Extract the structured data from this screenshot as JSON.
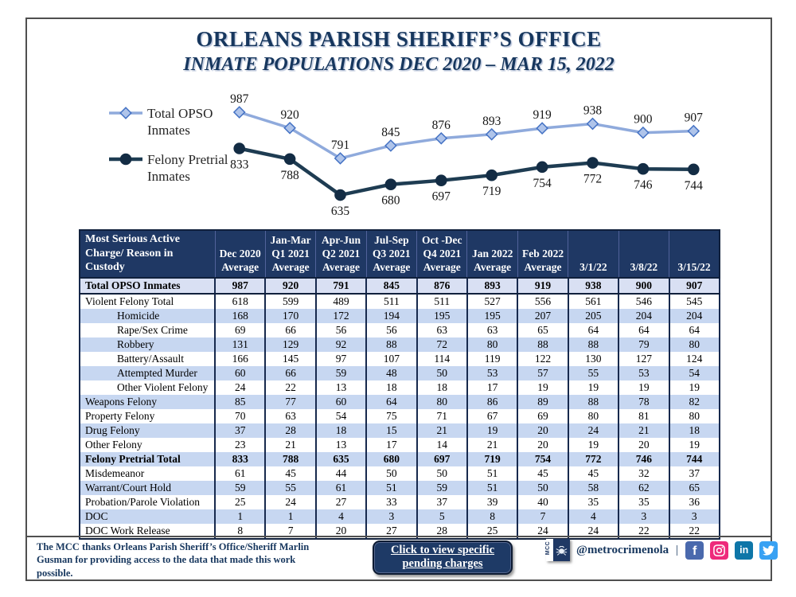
{
  "page": {
    "title": "ORLEANS PARISH SHERIFF’S OFFICE",
    "subtitle": "INMATE POPULATIONS DEC 2020 – MAR 15, 2022"
  },
  "chart_data": [
    {
      "type": "line",
      "title": "",
      "categories": [
        "Dec 2020 Average",
        "Jan-Mar Q1 2021 Average",
        "Apr-Jun Q2 2021 Average",
        "Jul-Sep Q3 2021 Average",
        "Oct -Dec Q4 2021 Average",
        "Jan 2022 Average",
        "Feb 2022 Average",
        "3/1/22",
        "3/8/22",
        "3/15/22"
      ],
      "series": [
        {
          "name": "Total OPSO Inmates",
          "label_lines": [
            "Total OPSO",
            "Inmates"
          ],
          "values": [
            987,
            920,
            791,
            845,
            876,
            893,
            919,
            938,
            900,
            907
          ],
          "color": "#8FAADC",
          "marker": "diamond",
          "marker_fill": "#AFC4EA",
          "marker_stroke": "#4472C4"
        },
        {
          "name": "Felony Pretrial Inmates",
          "label_lines": [
            "Felony Pretrial",
            "Inmates"
          ],
          "values": [
            833,
            788,
            635,
            680,
            697,
            719,
            754,
            772,
            746,
            744
          ],
          "color": "#1E3C52",
          "marker": "circle",
          "marker_fill": "#132C44",
          "marker_stroke": "#132C44"
        }
      ],
      "data_labels": true,
      "grid": false,
      "axes_hidden": true,
      "legend_position": "left",
      "ylim": [
        600,
        1020
      ]
    },
    {
      "type": "table",
      "header": [
        "Most Serious Active Charge/ Reason in Custody",
        "Dec 2020 Average",
        "Jan-Mar Q1 2021 Average",
        "Apr-Jun Q2 2021 Average",
        "Jul-Sep Q3 2021 Average",
        "Oct -Dec Q4 2021 Average",
        "Jan 2022 Average",
        "Feb 2022 Average",
        "3/1/22",
        "3/8/22",
        "3/15/22"
      ],
      "rows": [
        {
          "label": "Total OPSO Inmates",
          "bold": true,
          "indent": false,
          "values": [
            987,
            920,
            791,
            845,
            876,
            893,
            919,
            938,
            900,
            907
          ]
        },
        {
          "label": "Violent Felony Total",
          "bold": false,
          "indent": false,
          "values": [
            618,
            599,
            489,
            511,
            511,
            527,
            556,
            561,
            546,
            545
          ]
        },
        {
          "label": "Homicide",
          "bold": false,
          "indent": true,
          "values": [
            168,
            170,
            172,
            194,
            195,
            195,
            207,
            205,
            204,
            204
          ]
        },
        {
          "label": "Rape/Sex Crime",
          "bold": false,
          "indent": true,
          "values": [
            69,
            66,
            56,
            56,
            63,
            63,
            65,
            64,
            64,
            64
          ]
        },
        {
          "label": "Robbery",
          "bold": false,
          "indent": true,
          "values": [
            131,
            129,
            92,
            88,
            72,
            80,
            88,
            88,
            79,
            80
          ]
        },
        {
          "label": "Battery/Assault",
          "bold": false,
          "indent": true,
          "values": [
            166,
            145,
            97,
            107,
            114,
            119,
            122,
            130,
            127,
            124
          ]
        },
        {
          "label": "Attempted Murder",
          "bold": false,
          "indent": true,
          "values": [
            60,
            66,
            59,
            48,
            50,
            53,
            57,
            55,
            53,
            54
          ]
        },
        {
          "label": "Other Violent Felony",
          "bold": false,
          "indent": true,
          "values": [
            24,
            22,
            13,
            18,
            18,
            17,
            19,
            19,
            19,
            19
          ]
        },
        {
          "label": "Weapons Felony",
          "bold": false,
          "indent": false,
          "values": [
            85,
            77,
            60,
            64,
            80,
            86,
            89,
            88,
            78,
            82
          ]
        },
        {
          "label": "Property Felony",
          "bold": false,
          "indent": false,
          "values": [
            70,
            63,
            54,
            75,
            71,
            67,
            69,
            80,
            81,
            80
          ]
        },
        {
          "label": "Drug Felony",
          "bold": false,
          "indent": false,
          "values": [
            37,
            28,
            18,
            15,
            21,
            19,
            20,
            24,
            21,
            18
          ]
        },
        {
          "label": "Other Felony",
          "bold": false,
          "indent": false,
          "values": [
            23,
            21,
            13,
            17,
            14,
            21,
            20,
            19,
            20,
            19
          ]
        },
        {
          "label": "Felony Pretrial Total",
          "bold": true,
          "indent": false,
          "values": [
            833,
            788,
            635,
            680,
            697,
            719,
            754,
            772,
            746,
            744
          ]
        },
        {
          "label": "Misdemeanor",
          "bold": false,
          "indent": false,
          "values": [
            61,
            45,
            44,
            50,
            50,
            51,
            45,
            45,
            32,
            37
          ]
        },
        {
          "label": "Warrant/Court Hold",
          "bold": false,
          "indent": false,
          "values": [
            59,
            55,
            61,
            51,
            59,
            51,
            50,
            58,
            62,
            65
          ]
        },
        {
          "label": "Probation/Parole Violation",
          "bold": false,
          "indent": false,
          "values": [
            25,
            24,
            27,
            33,
            37,
            39,
            40,
            35,
            35,
            36
          ]
        },
        {
          "label": "DOC",
          "bold": false,
          "indent": false,
          "values": [
            1,
            1,
            4,
            3,
            5,
            8,
            7,
            4,
            3,
            3
          ]
        },
        {
          "label": "DOC Work Release",
          "bold": false,
          "indent": false,
          "values": [
            8,
            7,
            20,
            27,
            28,
            25,
            24,
            24,
            22,
            22
          ]
        }
      ]
    }
  ],
  "footer": {
    "credit": "The MCC thanks Orleans Parish Sheriff’s Office/Sheriff Marlin Gusman for providing access to the data that made this work possible.",
    "button_label_line1": "Click to view specific",
    "button_label_line2": "pending charges",
    "logo_text": "MCC",
    "handle": "@metrocrimenola",
    "separator": "|",
    "social": [
      {
        "name": "facebook",
        "color": "#4A69AD"
      },
      {
        "name": "instagram",
        "color": "#EE2A7B"
      },
      {
        "name": "linkedin",
        "color": "#0E76A8"
      },
      {
        "name": "twitter",
        "color": "#38A1F3"
      }
    ]
  },
  "colors": {
    "header_navy": "#1F3864",
    "row_shade": "#C7D7F1",
    "total_row": "#D9E0F3",
    "title_navy": "#17375E"
  }
}
